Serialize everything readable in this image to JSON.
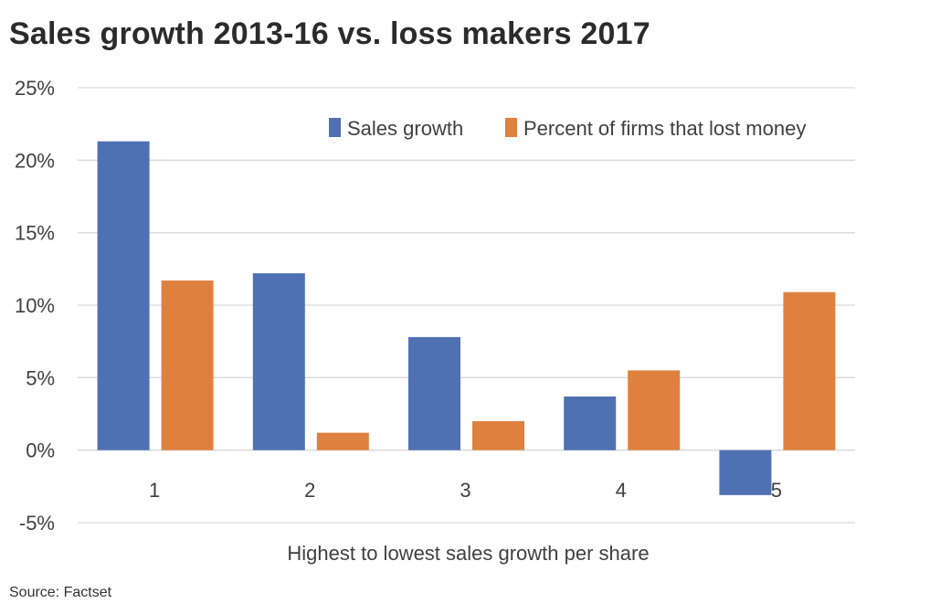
{
  "chart_data": {
    "type": "bar",
    "title": "Sales growth 2013-16 vs. loss makers 2017",
    "categories": [
      "1",
      "2",
      "3",
      "4",
      "5"
    ],
    "series": [
      {
        "name": "Sales growth",
        "color": "#4F71B3",
        "values": [
          21.3,
          12.2,
          7.8,
          3.7,
          -3.1
        ]
      },
      {
        "name": "Percent of firms that lost money",
        "color": "#DE813F",
        "values": [
          11.7,
          1.2,
          2.0,
          5.5,
          10.9
        ]
      }
    ],
    "xlabel": "Highest to lowest sales growth per share",
    "ylabel": "",
    "ylim": [
      -5,
      25
    ],
    "yticks": [
      "-5%",
      "0%",
      "5%",
      "10%",
      "15%",
      "20%",
      "25%"
    ],
    "ytick_values": [
      -5,
      0,
      5,
      10,
      15,
      20,
      25
    ],
    "grid": true,
    "legend_position": "top-right",
    "source": "Source: Factset"
  }
}
